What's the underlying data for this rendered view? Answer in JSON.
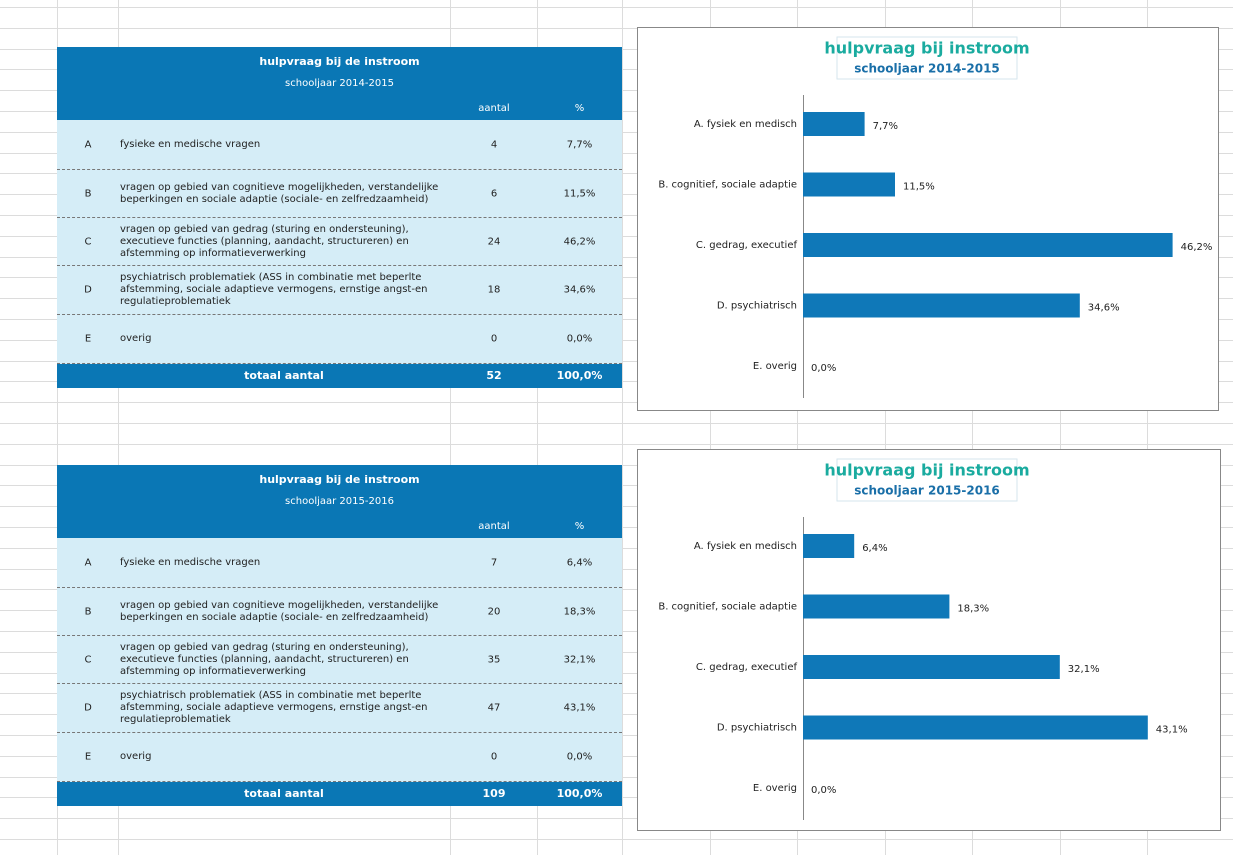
{
  "tables": [
    {
      "title": "hulpvraag bij de instroom",
      "subtitle": "schooljaar 2014-2015",
      "header": [
        "aantal",
        "%"
      ],
      "rows": [
        [
          "A",
          "fysieke en medische vragen",
          "4",
          "7,7%"
        ],
        [
          "B",
          "vragen op gebied van cognitieve mogelijkheden, verstandelijke beperkingen en sociale adaptie (sociale- en zelfredzaamheid)",
          "6",
          "11,5%"
        ],
        [
          "C",
          "vragen op gebied van gedrag (sturing en ondersteuning), executieve functies (planning, aandacht, structureren) en afstemming op informatieverwerking",
          "24",
          "46,2%"
        ],
        [
          "D",
          "psychiatrisch problematiek (ASS in combinatie met beperlte afstemming, sociale adaptieve vermogens, ernstige angst-en regulatieproblematiek",
          "18",
          "34,6%"
        ],
        [
          "E",
          "overig",
          "0",
          "0,0%"
        ]
      ],
      "total": [
        "totaal aantal",
        "52",
        "100,0%"
      ]
    },
    {
      "title": "hulpvraag bij de instroom",
      "subtitle": "schooljaar 2015-2016",
      "header": [
        "aantal",
        "%"
      ],
      "rows": [
        [
          "A",
          "fysieke en medische vragen",
          "7",
          "6,4%"
        ],
        [
          "B",
          "vragen op gebied van cognitieve mogelijkheden, verstandelijke beperkingen en sociale adaptie (sociale- en zelfredzaamheid)",
          "20",
          "18,3%"
        ],
        [
          "C",
          "vragen op gebied van gedrag (sturing en ondersteuning), executieve functies (planning, aandacht, structureren) en afstemming op informatieverwerking",
          "35",
          "32,1%"
        ],
        [
          "D",
          "psychiatrisch problematiek (ASS in combinatie met beperlte afstemming, sociale adaptieve vermogens, ernstige angst-en regulatieproblematiek",
          "47",
          "43,1%"
        ],
        [
          "E",
          "overig",
          "0",
          "0,0%"
        ]
      ],
      "total": [
        "totaal aantal",
        "109",
        "100,0%"
      ]
    }
  ],
  "chart_data": [
    {
      "type": "barh",
      "title": "hulpvraag bij instroom",
      "subtitle": "schooljaar 2014-2015",
      "categories": [
        "A. fysiek en medisch",
        "B. cognitief, sociale adaptie",
        "C. gedrag, executief",
        "D. psychiatrisch",
        "E. overig"
      ],
      "values": [
        7.7,
        11.5,
        46.2,
        34.6,
        0.0
      ],
      "value_labels": [
        "7,7%",
        "11,5%",
        "46,2%",
        "34,6%",
        "0,0%"
      ],
      "color": "#0f78b8",
      "xlim": [
        0,
        50
      ]
    },
    {
      "type": "barh",
      "title": "hulpvraag bij instroom",
      "subtitle": "schooljaar 2015-2016",
      "categories": [
        "A. fysiek en medisch",
        "B. cognitief, sociale adaptie",
        "C. gedrag, executief",
        "D. psychiatrisch",
        "E. overig"
      ],
      "values": [
        6.4,
        18.3,
        32.1,
        43.1,
        0.0
      ],
      "value_labels": [
        "6,4%",
        "18,3%",
        "32,1%",
        "43,1%",
        "0,0%"
      ],
      "color": "#0f78b8",
      "xlim": [
        0,
        50
      ]
    }
  ]
}
